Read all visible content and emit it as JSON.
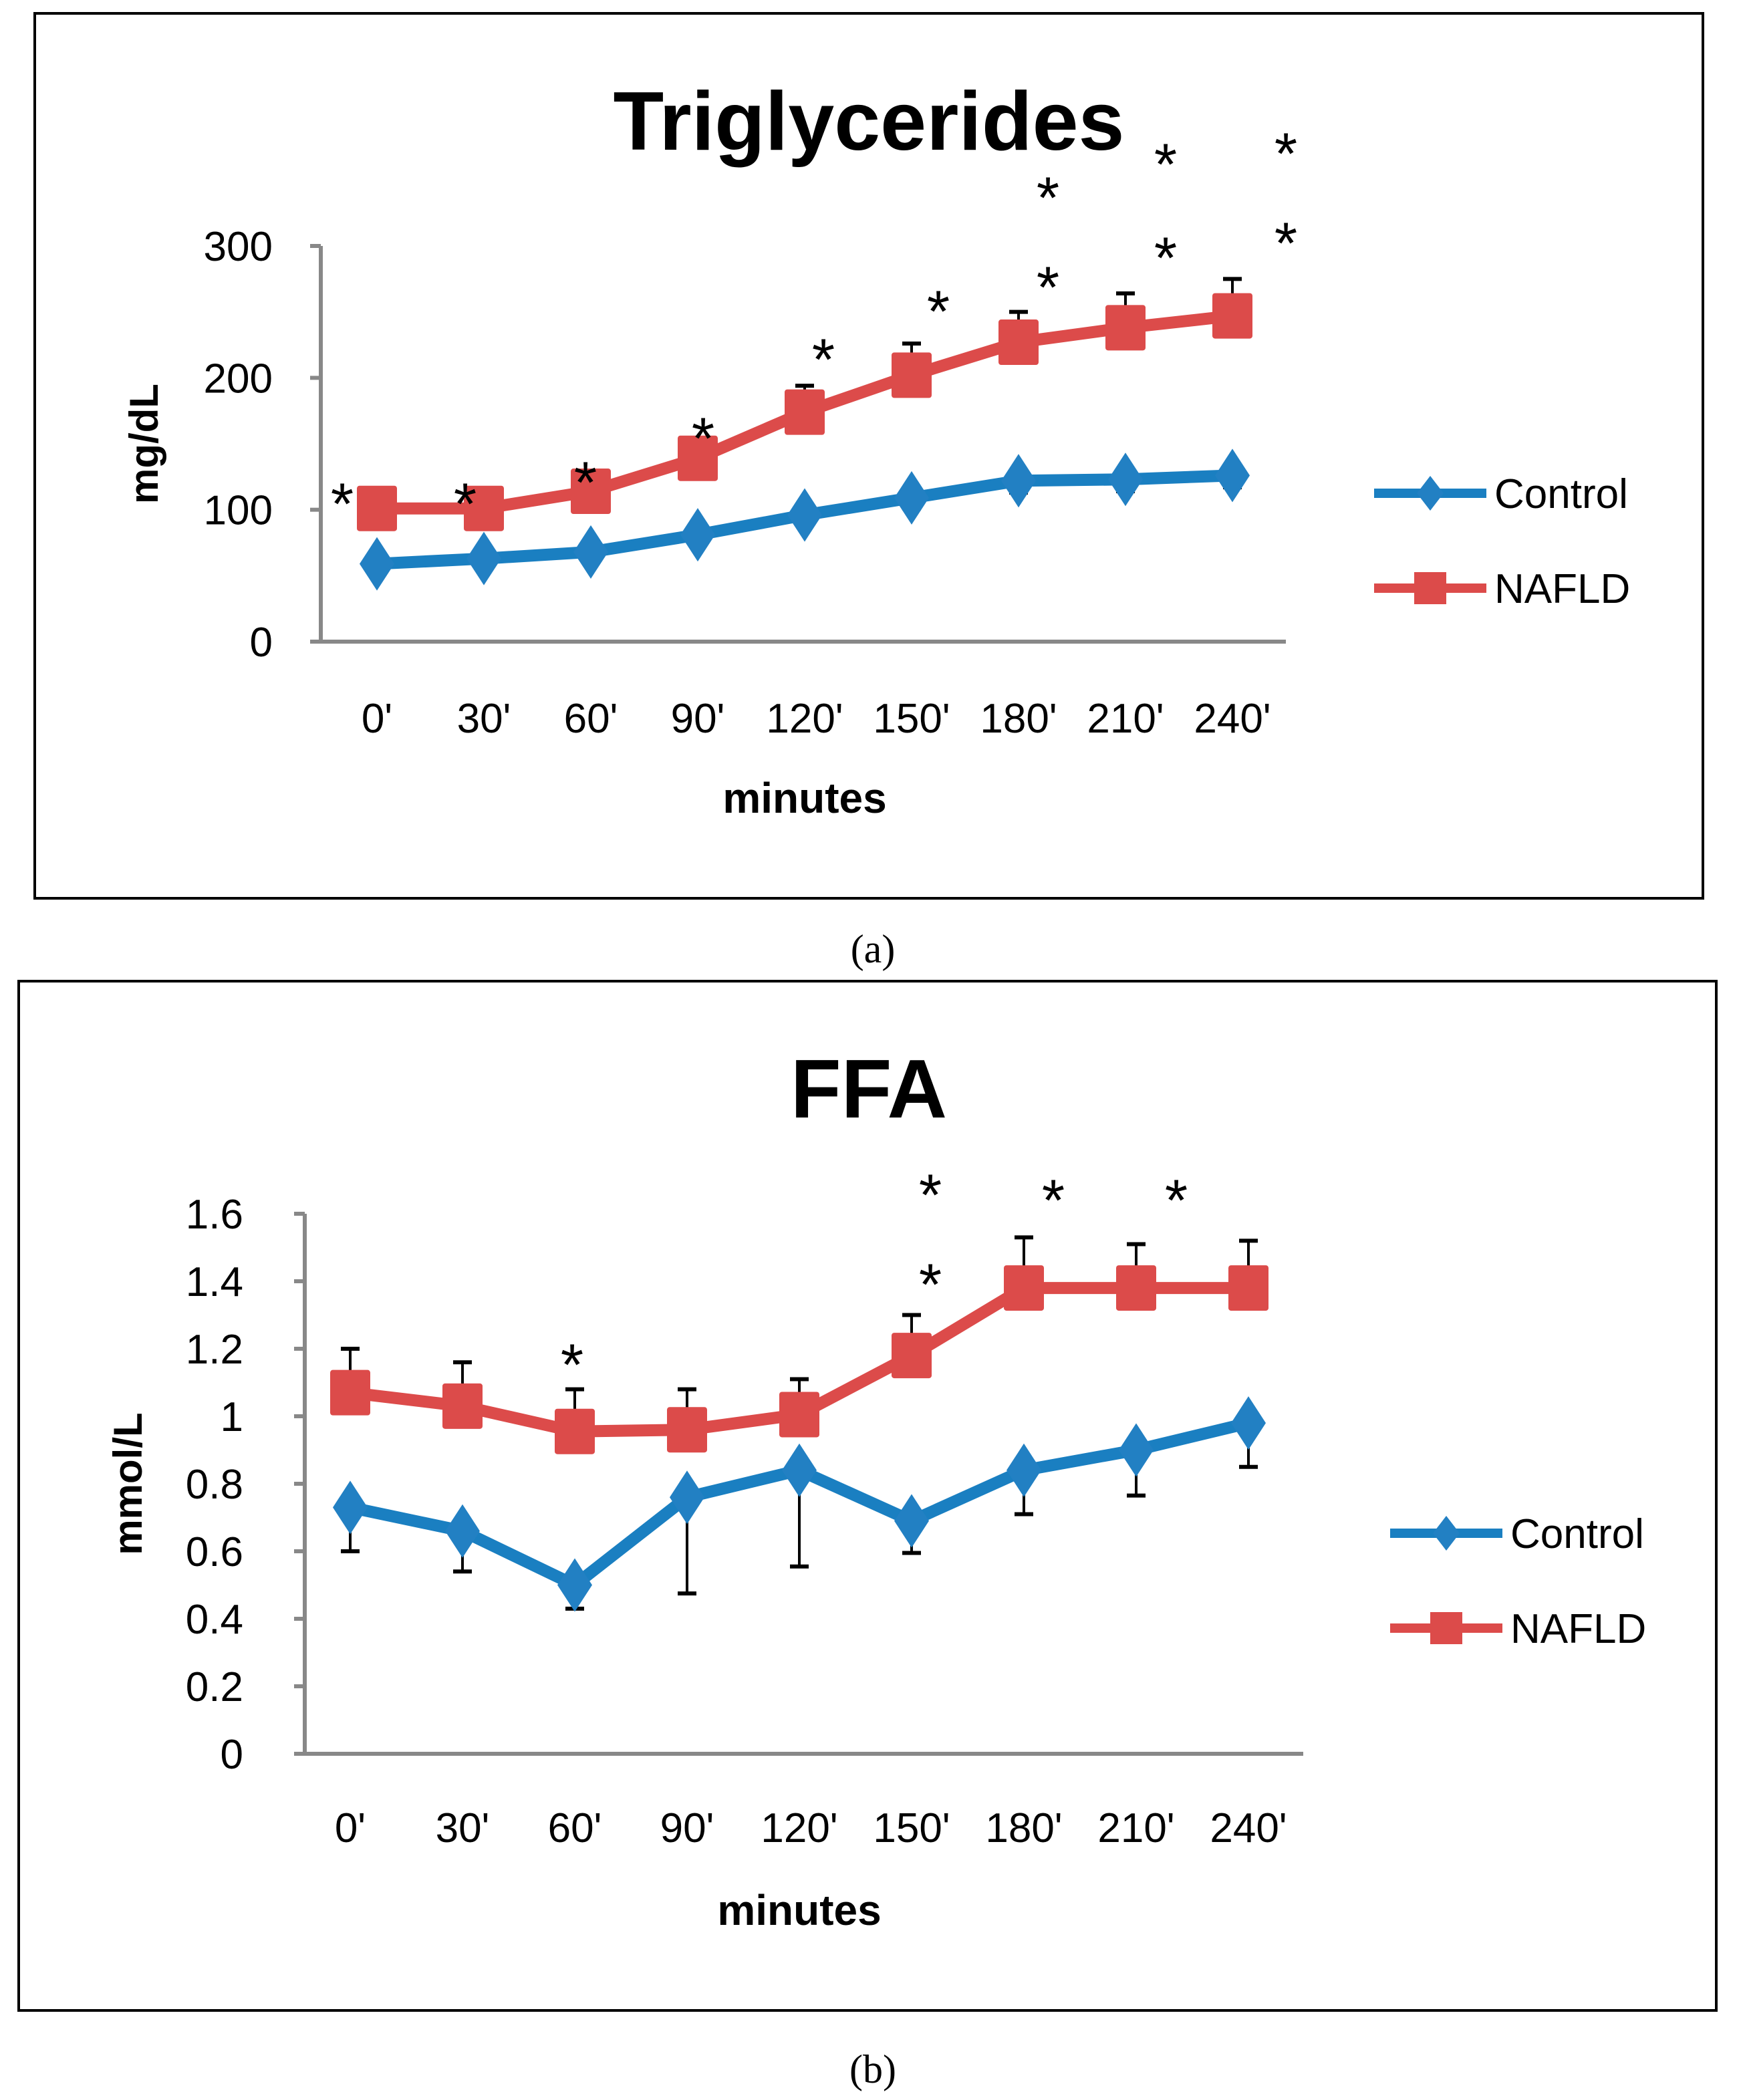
{
  "chart_data": [
    {
      "type": "line",
      "panel_label": "(a)",
      "title": "Triglycerides",
      "xlabel": "minutes",
      "ylabel": "mg/dL",
      "categories": [
        "0'",
        "30'",
        "60'",
        "90'",
        "120'",
        "150'",
        "180'",
        "210'",
        "240'"
      ],
      "ylim": [
        0,
        300
      ],
      "yticks": [
        "0",
        "100",
        "200",
        "300"
      ],
      "ytick_values": [
        0,
        100,
        200,
        300
      ],
      "grid": false,
      "legend_position": "right",
      "series": [
        {
          "name": "Control",
          "color": "#1a7fc1",
          "marker": "diamond",
          "values": [
            59,
            63,
            68,
            81,
            96,
            109,
            122,
            123,
            126
          ],
          "error_down": [
            4,
            4,
            4,
            6,
            7,
            8,
            9,
            9,
            9
          ]
        },
        {
          "name": "NAFLD",
          "color": "#dc4b4a",
          "marker": "square",
          "values": [
            101,
            101,
            114,
            139,
            174,
            202,
            227,
            238,
            247
          ],
          "error_up": [
            4,
            4,
            5,
            7,
            20,
            24,
            23,
            26,
            28
          ]
        }
      ],
      "significance_marks": [
        1,
        1,
        1,
        1,
        1,
        1,
        2,
        2,
        2
      ],
      "mark_symbol": "*"
    },
    {
      "type": "line",
      "panel_label": "(b)",
      "title": "FFA",
      "xlabel": "minutes",
      "ylabel": "mmol/L",
      "categories": [
        "0'",
        "30'",
        "60'",
        "90'",
        "120'",
        "150'",
        "180'",
        "210'",
        "240'"
      ],
      "ylim": [
        0,
        1.6
      ],
      "yticks": [
        "0",
        "0.2",
        "0.4",
        "0.6",
        "0.8",
        "1",
        "1.2",
        "1.4",
        "1.6"
      ],
      "ytick_values": [
        0,
        0.2,
        0.4,
        0.6,
        0.8,
        1,
        1.2,
        1.4,
        1.6
      ],
      "grid": false,
      "legend_position": "right",
      "series": [
        {
          "name": "Control",
          "color": "#1a7fc1",
          "marker": "diamond",
          "values": [
            0.73,
            0.66,
            0.5,
            0.76,
            0.84,
            0.69,
            0.84,
            0.9,
            0.98
          ],
          "error_down": [
            0.13,
            0.12,
            0.07,
            0.285,
            0.285,
            0.095,
            0.13,
            0.135,
            0.13
          ]
        },
        {
          "name": "NAFLD",
          "color": "#dc4b4a",
          "marker": "square",
          "values": [
            1.07,
            1.03,
            0.955,
            0.96,
            1.005,
            1.18,
            1.38,
            1.38,
            1.38
          ],
          "error_up": [
            0.13,
            0.13,
            0.125,
            0.12,
            0.105,
            0.12,
            0.15,
            0.13,
            0.14
          ]
        }
      ],
      "significance_marks": [
        0,
        0,
        1,
        0,
        0,
        2,
        1,
        1,
        0
      ],
      "mark_symbol": "*"
    }
  ]
}
